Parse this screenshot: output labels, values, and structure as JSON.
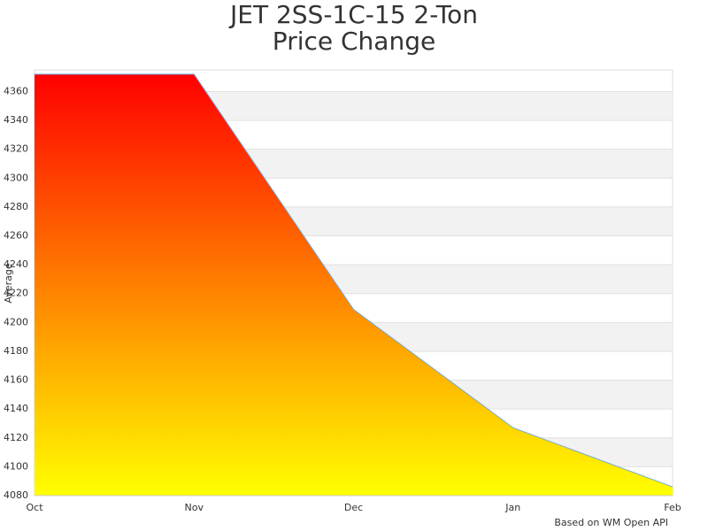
{
  "chart_data": {
    "type": "area",
    "title": [
      "JET 2SS-1C-15 2-Ton",
      "Price Change"
    ],
    "y_label": "Average",
    "footer": "Based on WM Open API",
    "categories": [
      "Oct",
      "Nov",
      "Dec",
      "Jan",
      "Feb"
    ],
    "values": [
      4372,
      4372,
      4209,
      4127,
      4086
    ],
    "gradient": [
      "#ff0000",
      "#ffff00"
    ],
    "line_color": "#6fa8dc",
    "ylim": [
      4080,
      4375
    ],
    "yticks": [
      4080,
      4100,
      4120,
      4140,
      4160,
      4180,
      4200,
      4220,
      4240,
      4260,
      4280,
      4300,
      4320,
      4340,
      4360
    ],
    "grid": true
  }
}
